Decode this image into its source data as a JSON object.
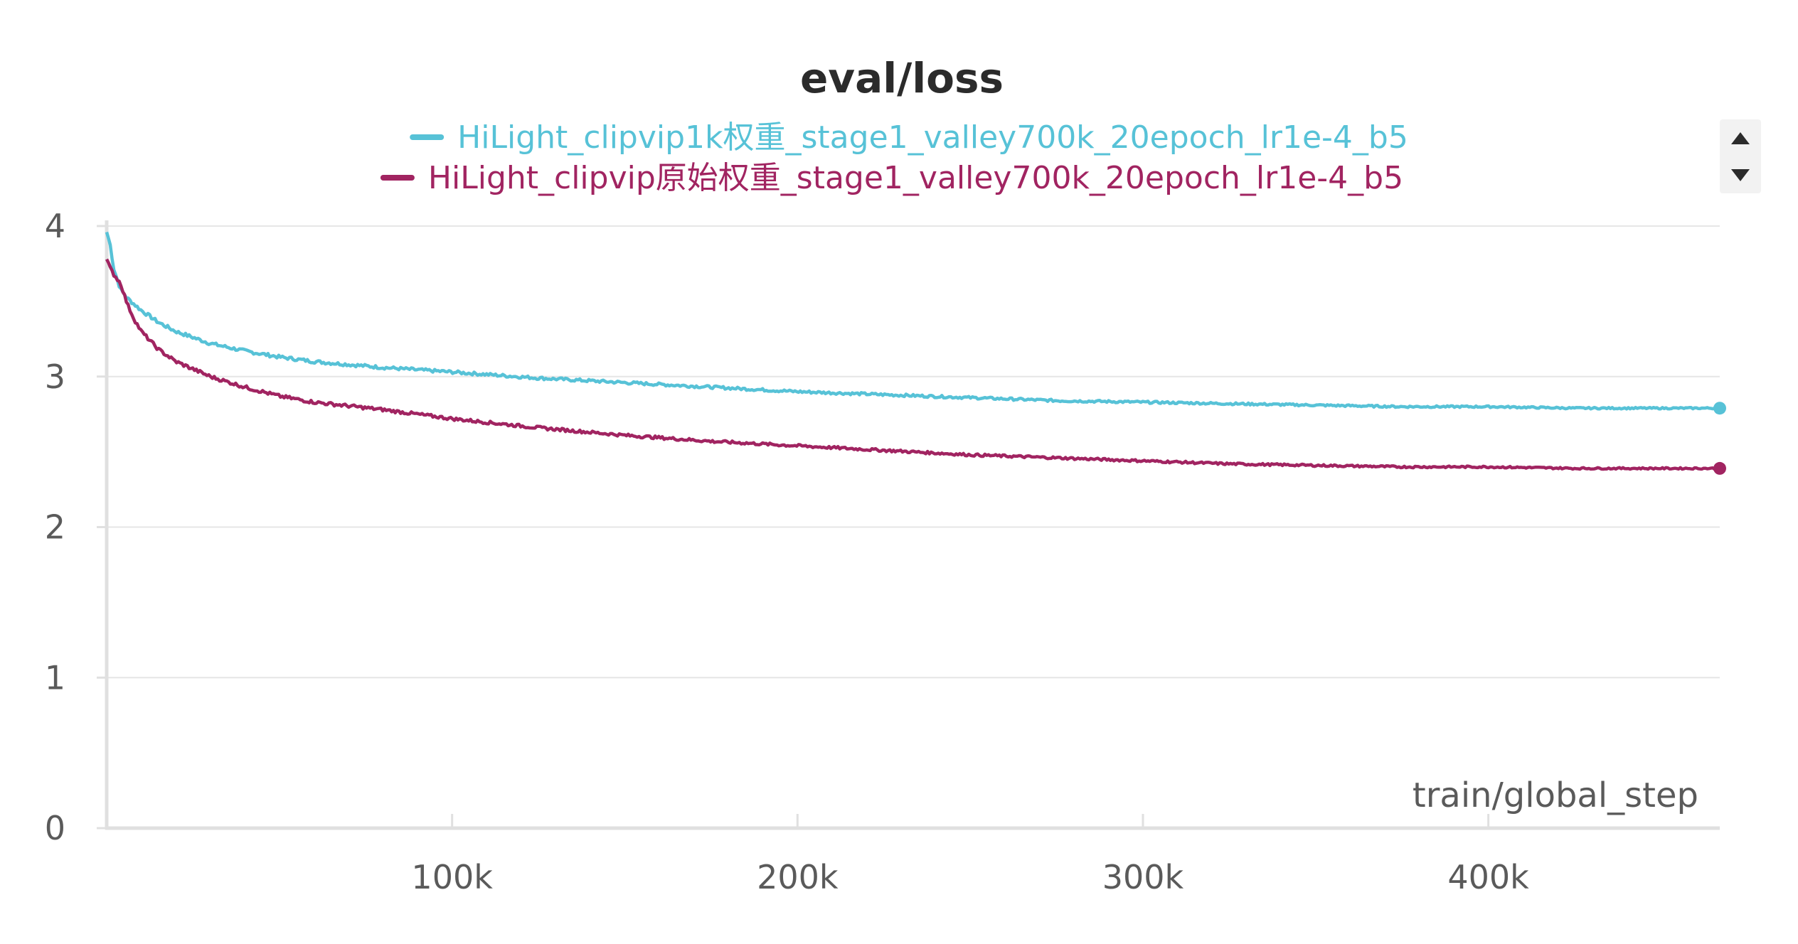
{
  "chart_data": {
    "type": "line",
    "title": "eval/loss",
    "xlabel": "train/global_step",
    "ylabel": "",
    "xlim": [
      0,
      467000
    ],
    "ylim": [
      0,
      4
    ],
    "xticks": [
      {
        "value": 100000,
        "label": "100k"
      },
      {
        "value": 200000,
        "label": "200k"
      },
      {
        "value": 300000,
        "label": "300k"
      },
      {
        "value": 400000,
        "label": "400k"
      }
    ],
    "yticks": [
      {
        "value": 0,
        "label": "0"
      },
      {
        "value": 1,
        "label": "1"
      },
      {
        "value": 2,
        "label": "2"
      },
      {
        "value": 3,
        "label": "3"
      },
      {
        "value": 4,
        "label": "4"
      }
    ],
    "grid": true,
    "legend_position": "top-center",
    "series": [
      {
        "name": "HiLight_clipvip1k权重_stage1_valley700k_20epoch_lr1e-4_b5",
        "color": "#57c2d7",
        "x": [
          0,
          1000,
          2000,
          4000,
          6000,
          8000,
          10000,
          15000,
          20000,
          30000,
          40000,
          50000,
          60000,
          80000,
          100000,
          125000,
          150000,
          175000,
          200000,
          225000,
          250000,
          275000,
          300000,
          325000,
          350000,
          375000,
          400000,
          425000,
          450000,
          467000
        ],
        "values": [
          3.96,
          3.88,
          3.72,
          3.58,
          3.52,
          3.48,
          3.44,
          3.36,
          3.3,
          3.22,
          3.17,
          3.13,
          3.1,
          3.06,
          3.03,
          2.99,
          2.96,
          2.93,
          2.9,
          2.88,
          2.86,
          2.84,
          2.83,
          2.82,
          2.81,
          2.8,
          2.8,
          2.79,
          2.79,
          2.79
        ]
      },
      {
        "name": "HiLight_clipvip原始权重_stage1_valley700k_20epoch_lr1e-4_b5",
        "color": "#a12461",
        "x": [
          0,
          1000,
          2000,
          4000,
          6000,
          8000,
          10000,
          15000,
          20000,
          30000,
          40000,
          50000,
          60000,
          80000,
          100000,
          125000,
          150000,
          175000,
          200000,
          225000,
          250000,
          275000,
          300000,
          325000,
          350000,
          375000,
          400000,
          425000,
          450000,
          467000
        ],
        "values": [
          3.78,
          3.72,
          3.68,
          3.62,
          3.48,
          3.38,
          3.3,
          3.18,
          3.1,
          3.0,
          2.93,
          2.87,
          2.83,
          2.78,
          2.72,
          2.66,
          2.61,
          2.57,
          2.54,
          2.51,
          2.48,
          2.46,
          2.44,
          2.42,
          2.41,
          2.4,
          2.4,
          2.39,
          2.39,
          2.39
        ]
      }
    ]
  },
  "legend": {
    "scroll_up_icon": "triangle-up-icon",
    "scroll_down_icon": "triangle-down-icon"
  }
}
